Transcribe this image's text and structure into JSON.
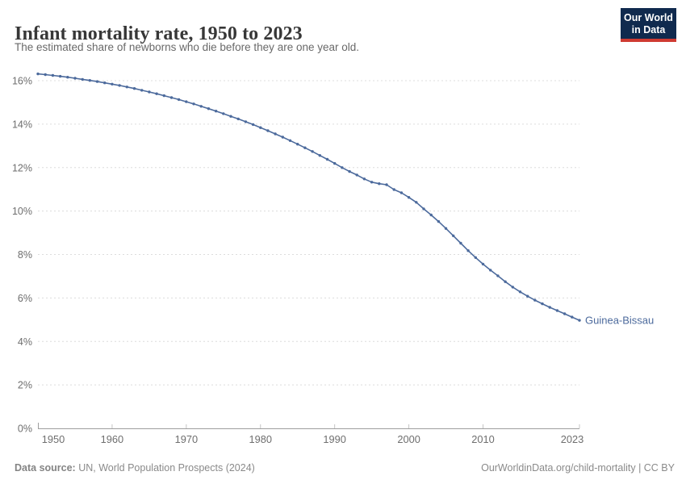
{
  "header": {
    "title": "Infant mortality rate, 1950 to 2023",
    "subtitle": "The estimated share of newborns who die before they are one year old.",
    "logo": {
      "line1": "Our World",
      "line2": "in Data"
    }
  },
  "chart_data": {
    "type": "line",
    "title": "Infant mortality rate, 1950 to 2023",
    "x": {
      "start": 1950,
      "end": 2023,
      "step": 1,
      "label": ""
    },
    "xticks": [
      1950,
      1960,
      1970,
      1980,
      1990,
      2000,
      2010,
      2023
    ],
    "yticks": [
      0,
      2,
      4,
      6,
      8,
      10,
      12,
      14,
      16
    ],
    "ytick_suffix": "%",
    "ylim": [
      0,
      16.4
    ],
    "ylabel": "",
    "grid": "horizontal-dashed",
    "legend_position": "end-of-line-label",
    "series": [
      {
        "name": "Guinea-Bissau",
        "color": "#4c6a9c",
        "values": [
          16.31,
          16.28,
          16.24,
          16.2,
          16.16,
          16.11,
          16.06,
          16.01,
          15.96,
          15.9,
          15.84,
          15.78,
          15.71,
          15.64,
          15.56,
          15.48,
          15.4,
          15.31,
          15.22,
          15.13,
          15.03,
          14.93,
          14.82,
          14.71,
          14.6,
          14.48,
          14.36,
          14.24,
          14.11,
          13.98,
          13.84,
          13.7,
          13.55,
          13.4,
          13.24,
          13.08,
          12.91,
          12.74,
          12.56,
          12.38,
          12.19,
          12.0,
          11.82,
          11.66,
          11.48,
          11.33,
          11.26,
          11.21,
          10.99,
          10.84,
          10.63,
          10.4,
          10.1,
          9.82,
          9.52,
          9.2,
          8.86,
          8.52,
          8.18,
          7.86,
          7.56,
          7.28,
          7.02,
          6.75,
          6.5,
          6.28,
          6.08,
          5.9,
          5.73,
          5.57,
          5.42,
          5.27,
          5.12,
          4.97
        ]
      }
    ]
  },
  "footer": {
    "source_bold": "Data source:",
    "source_rest": " UN, World Population Prospects (2024)",
    "note_right": "OurWorldinData.org/child-mortality | CC BY"
  },
  "colors": {
    "line": "#4c6a9c",
    "grid": "#dcdcdc",
    "axis": "#9e9e9e",
    "tick": "#c4c4c4",
    "axis_text": "#6e6e6e",
    "logo_bg": "#102a4e",
    "logo_accent": "#cf3b32"
  }
}
